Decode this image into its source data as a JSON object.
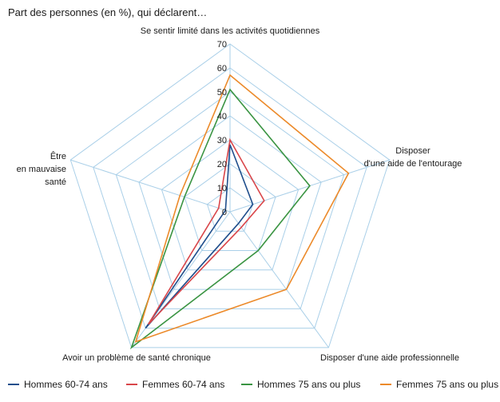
{
  "subtitle": "Part des personnes (en %), qui déclarent…",
  "chart_data": {
    "type": "radar",
    "axes": [
      [
        "Se sentir limité dans les activités quotidiennes"
      ],
      [
        "Disposer",
        "d'une aide de l'entourage"
      ],
      [
        "Disposer d'une aide professionnelle"
      ],
      [
        "Avoir un problème de santé chronique"
      ],
      [
        "Être",
        "en mauvaise",
        "santé"
      ]
    ],
    "rmax": 70,
    "ticks": [
      0,
      10,
      20,
      30,
      40,
      50,
      60,
      70
    ],
    "grid": true,
    "legend_position": "bottom",
    "series": [
      {
        "name": "Hommes 60-74 ans",
        "color": "#1f4e8c",
        "values": [
          28,
          10,
          6,
          60,
          2
        ]
      },
      {
        "name": "Femmes 60-74 ans",
        "color": "#d9464a",
        "values": [
          30,
          15,
          8,
          58,
          5
        ]
      },
      {
        "name": "Hommes 75 ans ou plus",
        "color": "#3a9442",
        "values": [
          51,
          35,
          20,
          70,
          20
        ]
      },
      {
        "name": "Femmes 75 ans ou plus",
        "color": "#ec8a2a",
        "values": [
          57,
          52,
          40,
          67,
          22
        ]
      }
    ]
  }
}
